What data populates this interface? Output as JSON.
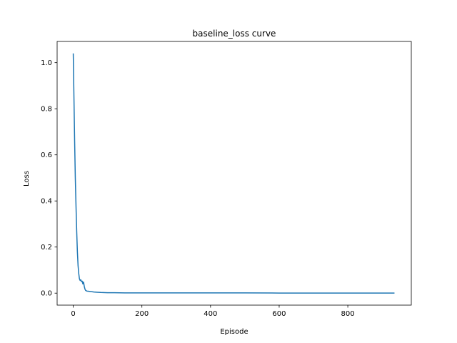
{
  "chart_data": {
    "type": "line",
    "title": "baseline_loss curve",
    "xlabel": "Episode",
    "ylabel": "Loss",
    "xlim": [
      -47,
      985
    ],
    "ylim": [
      -0.052,
      1.092
    ],
    "xticks": [
      0,
      200,
      400,
      600,
      800
    ],
    "yticks": [
      0.0,
      0.2,
      0.4,
      0.6,
      0.8,
      1.0
    ],
    "xtick_labels": [
      "0",
      "200",
      "400",
      "600",
      "800"
    ],
    "ytick_labels": [
      "0.0",
      "0.2",
      "0.4",
      "0.6",
      "0.8",
      "1.0"
    ],
    "grid": false,
    "series": [
      {
        "color": "#1f77b4",
        "x": [
          0,
          2,
          4,
          6,
          8,
          10,
          12,
          14,
          16,
          18,
          20,
          22,
          24,
          26,
          28,
          30,
          32,
          34,
          36,
          38,
          40,
          45,
          50,
          60,
          70,
          80,
          100,
          120,
          150,
          200,
          300,
          400,
          500,
          600,
          700,
          800,
          900,
          936
        ],
        "y": [
          1.04,
          0.85,
          0.66,
          0.5,
          0.38,
          0.27,
          0.18,
          0.12,
          0.085,
          0.062,
          0.055,
          0.058,
          0.05,
          0.052,
          0.04,
          0.048,
          0.03,
          0.018,
          0.012,
          0.01,
          0.009,
          0.008,
          0.007,
          0.005,
          0.004,
          0.003,
          0.002,
          0.002,
          0.001,
          0.001,
          0.001,
          0.001,
          0.001,
          0.0005,
          0.0005,
          0.0005,
          0.0005,
          0.0005
        ]
      }
    ]
  }
}
